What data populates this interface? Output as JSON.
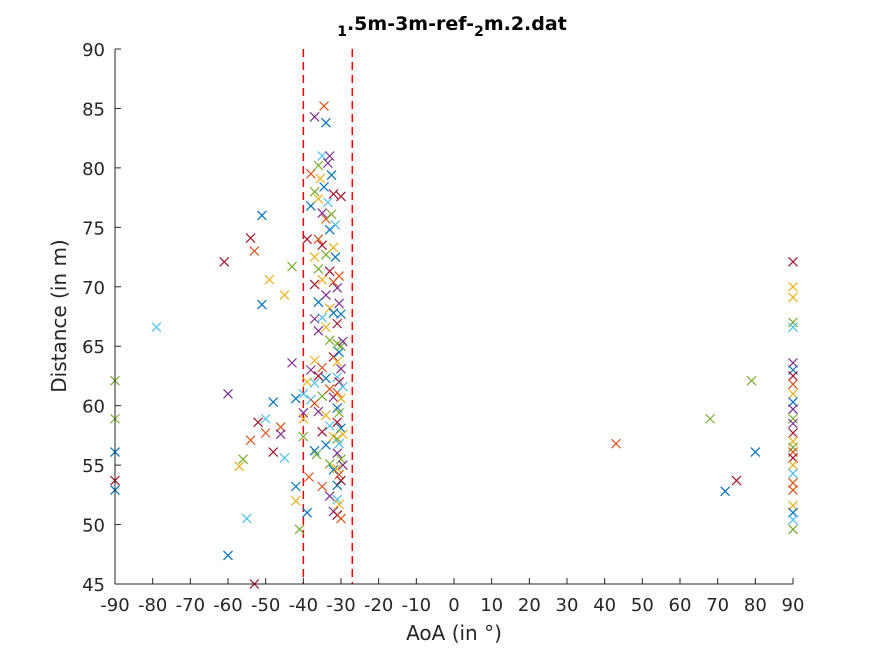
{
  "chart_data": {
    "type": "scatter",
    "title": "1.5m-3m-ref-2m.2.dat",
    "title_parts": [
      {
        "text": "1",
        "sub": true
      },
      {
        "text": ".5m-3m-ref-",
        "sub": false
      },
      {
        "text": "2",
        "sub": true
      },
      {
        "text": "m.2.dat",
        "sub": false
      }
    ],
    "xlabel": "AoA (in °)",
    "ylabel": "Distance (in m)",
    "xlim": [
      -90,
      90
    ],
    "ylim": [
      45,
      90
    ],
    "xticks": [
      -90,
      -80,
      -70,
      -60,
      -50,
      -40,
      -30,
      -20,
      -10,
      0,
      10,
      20,
      30,
      40,
      50,
      60,
      70,
      80,
      90
    ],
    "yticks": [
      45,
      50,
      55,
      60,
      65,
      70,
      75,
      80,
      85,
      90
    ],
    "grid": false,
    "marker": "x",
    "reference_lines": [
      {
        "x": -40,
        "color": "#ff0000",
        "style": "dashed"
      },
      {
        "x": -27,
        "color": "#ff0000",
        "style": "dashed"
      }
    ],
    "palette": [
      "#0072bd",
      "#d95319",
      "#edb120",
      "#7e2f8e",
      "#77ac30",
      "#4dbeee",
      "#a2142f"
    ],
    "points": [
      [
        -90,
        56.1,
        0
      ],
      [
        -90,
        52.9,
        0
      ],
      [
        -90,
        53.7,
        6
      ],
      [
        -90,
        62.1,
        4
      ],
      [
        -90,
        58.9,
        4
      ],
      [
        -79,
        66.6,
        5
      ],
      [
        -61,
        72.1,
        6
      ],
      [
        -60,
        61,
        3
      ],
      [
        -60,
        47.4,
        0
      ],
      [
        -56,
        55.5,
        4
      ],
      [
        -57,
        54.9,
        2
      ],
      [
        -55,
        50.5,
        5
      ],
      [
        -54,
        74.1,
        6
      ],
      [
        -54,
        57.1,
        1
      ],
      [
        -53,
        73,
        1
      ],
      [
        -53,
        45,
        6
      ],
      [
        -52,
        58.6,
        6
      ],
      [
        -51,
        76,
        0
      ],
      [
        -51,
        68.5,
        0
      ],
      [
        -50,
        57.7,
        1
      ],
      [
        -50,
        58.9,
        5
      ],
      [
        -49,
        70.6,
        2
      ],
      [
        -48,
        60.3,
        0
      ],
      [
        -48,
        56.1,
        6
      ],
      [
        -46,
        58.2,
        1
      ],
      [
        -46,
        57.6,
        3
      ],
      [
        -45,
        55.6,
        5
      ],
      [
        -45,
        69.3,
        2
      ],
      [
        -43,
        71.7,
        4
      ],
      [
        -43,
        63.6,
        3
      ],
      [
        -42,
        60.6,
        0
      ],
      [
        -42,
        53.2,
        0
      ],
      [
        -42,
        52,
        2
      ],
      [
        -41,
        49.6,
        4
      ],
      [
        -40,
        59.4,
        3
      ],
      [
        -40,
        57.4,
        4
      ],
      [
        -40,
        58.9,
        2
      ],
      [
        -40,
        61,
        5
      ],
      [
        -39,
        62,
        2
      ],
      [
        -39,
        74,
        6
      ],
      [
        -39,
        51,
        0
      ],
      [
        -38.5,
        54,
        1
      ],
      [
        -38,
        60.5,
        5
      ],
      [
        -38,
        63,
        3
      ],
      [
        -38,
        76.8,
        0
      ],
      [
        -38,
        79.5,
        1
      ],
      [
        -37,
        84.3,
        3
      ],
      [
        -37,
        78,
        4
      ],
      [
        -37,
        72.5,
        2
      ],
      [
        -37,
        70.2,
        6
      ],
      [
        -37,
        67.3,
        3
      ],
      [
        -37,
        63.8,
        2
      ],
      [
        -37,
        61.9,
        5
      ],
      [
        -37,
        60.2,
        1
      ],
      [
        -37,
        56.2,
        0
      ],
      [
        -36.5,
        55.9,
        4
      ],
      [
        -36,
        80.2,
        4
      ],
      [
        -36,
        77.4,
        2
      ],
      [
        -36,
        74,
        1
      ],
      [
        -36,
        71.5,
        4
      ],
      [
        -36,
        68.7,
        0
      ],
      [
        -36,
        66.3,
        3
      ],
      [
        -36,
        62.5,
        6
      ],
      [
        -36,
        59.5,
        3
      ],
      [
        -35.5,
        79.1,
        2
      ],
      [
        -35,
        81,
        5
      ],
      [
        -35,
        76.2,
        3
      ],
      [
        -35,
        73.5,
        6
      ],
      [
        -35,
        70.6,
        2
      ],
      [
        -35,
        67.4,
        5
      ],
      [
        -35,
        63.2,
        1
      ],
      [
        -35,
        60.8,
        4
      ],
      [
        -35,
        57.8,
        6
      ],
      [
        -35,
        53.2,
        1
      ],
      [
        -34.5,
        85.2,
        1
      ],
      [
        -34.5,
        78.4,
        0
      ],
      [
        -34,
        75.7,
        1
      ],
      [
        -34,
        72.7,
        4
      ],
      [
        -34,
        69.3,
        3
      ],
      [
        -34,
        66.6,
        2
      ],
      [
        -34,
        62.3,
        0
      ],
      [
        -34,
        59.2,
        2
      ],
      [
        -34,
        56.7,
        0
      ],
      [
        -34,
        83.8,
        0
      ],
      [
        -33.5,
        80.4,
        3
      ],
      [
        -33.5,
        77.1,
        5
      ],
      [
        -33,
        74.8,
        0
      ],
      [
        -33,
        71.3,
        6
      ],
      [
        -33,
        68.2,
        2
      ],
      [
        -33,
        65.5,
        4
      ],
      [
        -33,
        61.4,
        1
      ],
      [
        -33,
        58.3,
        5
      ],
      [
        -33,
        55.1,
        4
      ],
      [
        -33,
        52.4,
        3
      ],
      [
        -33,
        81,
        3
      ],
      [
        -32.5,
        79.4,
        0
      ],
      [
        -32.5,
        76.1,
        4
      ],
      [
        -32,
        73.3,
        2
      ],
      [
        -32,
        70.4,
        1
      ],
      [
        -32,
        67.8,
        0
      ],
      [
        -32,
        64.1,
        6
      ],
      [
        -32,
        60.7,
        3
      ],
      [
        -32,
        57.4,
        2
      ],
      [
        -32,
        54.6,
        0
      ],
      [
        -32,
        51.1,
        3
      ],
      [
        -32,
        77.8,
        6
      ],
      [
        -31.5,
        75.2,
        5
      ],
      [
        -31.5,
        72.5,
        0
      ],
      [
        -31,
        69.9,
        3
      ],
      [
        -31,
        66.9,
        6
      ],
      [
        -31,
        65.2,
        4
      ],
      [
        -31,
        63.7,
        2
      ],
      [
        -31,
        62.4,
        5
      ],
      [
        -31,
        61.1,
        1
      ],
      [
        -31,
        59.8,
        0
      ],
      [
        -31,
        58.6,
        6
      ],
      [
        -31,
        57.2,
        4
      ],
      [
        -31,
        56,
        3
      ],
      [
        -31,
        54.7,
        2
      ],
      [
        -31,
        53.3,
        0
      ],
      [
        -31,
        52.1,
        5
      ],
      [
        -31,
        50.8,
        6
      ],
      [
        -30.5,
        70.9,
        1
      ],
      [
        -30.5,
        68.6,
        3
      ],
      [
        -30.5,
        64.5,
        0
      ],
      [
        -30.5,
        62,
        6
      ],
      [
        -30.5,
        59.4,
        4
      ],
      [
        -30.5,
        56.8,
        5
      ],
      [
        -30.5,
        54.2,
        1
      ],
      [
        -30.5,
        51.7,
        2
      ],
      [
        -30,
        77.6,
        6
      ],
      [
        -30,
        67.7,
        0
      ],
      [
        -30,
        65,
        4
      ],
      [
        -30,
        63.1,
        3
      ],
      [
        -30,
        60.6,
        2
      ],
      [
        -30,
        58.1,
        0
      ],
      [
        -30,
        55.5,
        4
      ],
      [
        -30,
        53.7,
        6
      ],
      [
        -30,
        50.5,
        1
      ],
      [
        -29.5,
        65.4,
        3
      ],
      [
        -29.5,
        61.6,
        5
      ],
      [
        -29.5,
        57.6,
        2
      ],
      [
        -29.5,
        55,
        3
      ],
      [
        43,
        56.8,
        1
      ],
      [
        68,
        58.9,
        4
      ],
      [
        72,
        52.8,
        0
      ],
      [
        75,
        53.7,
        6
      ],
      [
        79,
        62.1,
        4
      ],
      [
        80,
        56.1,
        0
      ],
      [
        90,
        72.1,
        6
      ],
      [
        90,
        70,
        2
      ],
      [
        90,
        69.1,
        2
      ],
      [
        90,
        67,
        4
      ],
      [
        90,
        66.6,
        5
      ],
      [
        90,
        63.6,
        3
      ],
      [
        90,
        63,
        0
      ],
      [
        90,
        62.5,
        6
      ],
      [
        90,
        61.8,
        1
      ],
      [
        90,
        61,
        2
      ],
      [
        90,
        60.3,
        0
      ],
      [
        90,
        59.7,
        3
      ],
      [
        90,
        58.9,
        4
      ],
      [
        90,
        58.5,
        3
      ],
      [
        90,
        57.7,
        6
      ],
      [
        90,
        57,
        2
      ],
      [
        90,
        56.5,
        4
      ],
      [
        90,
        56.1,
        1
      ],
      [
        90,
        55.6,
        6
      ],
      [
        90,
        55,
        2
      ],
      [
        90,
        54.3,
        5
      ],
      [
        90,
        53.5,
        1
      ],
      [
        90,
        52.9,
        1
      ],
      [
        90,
        51.6,
        2
      ],
      [
        90,
        51,
        0
      ],
      [
        90,
        50.4,
        5
      ],
      [
        90,
        49.6,
        4
      ]
    ]
  }
}
